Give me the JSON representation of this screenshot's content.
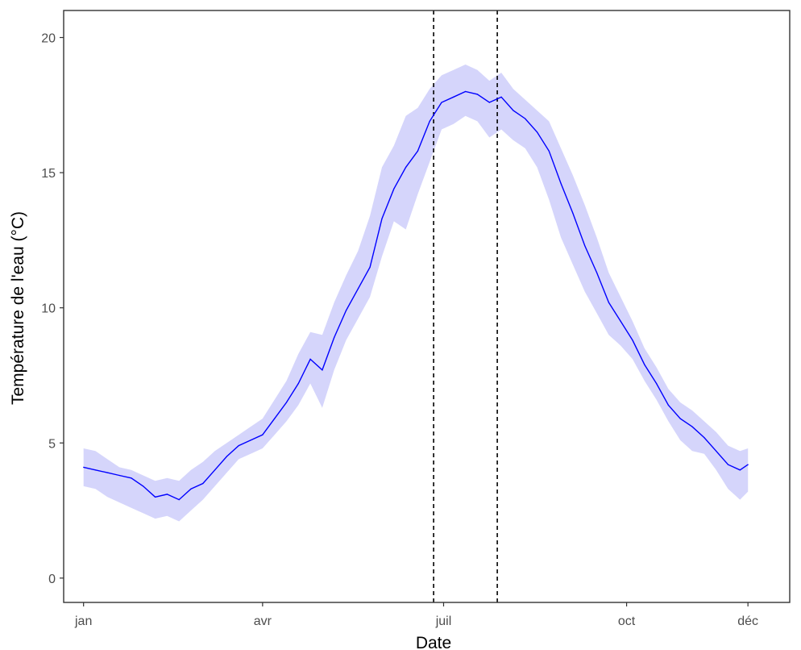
{
  "chart_data": {
    "type": "line",
    "title": "",
    "xlabel": "Date",
    "ylabel": "Température de l'eau (°C)",
    "x_ticks": [
      "jan",
      "avr",
      "juil",
      "oct",
      "déc"
    ],
    "x_tick_positions": [
      "2019-01-01",
      "2019-04-01",
      "2019-07-01",
      "2019-10-01",
      "2019-12-01"
    ],
    "xlim": [
      "2018-12-22",
      "2019-12-22"
    ],
    "y_ticks": [
      "0",
      "5",
      "10",
      "15",
      "20"
    ],
    "ylim": [
      -0.9,
      21
    ],
    "grid": false,
    "vertical_lines": [
      {
        "x": "2019-06-26",
        "style": "dashed",
        "color": "#000000"
      },
      {
        "x": "2019-07-28",
        "style": "dashed",
        "color": "#000000"
      }
    ],
    "series": [
      {
        "style": "line-with-ribbon",
        "color": "#0000ff",
        "ribbon_color": "#d5d5fb",
        "x": [
          "2019-01-01",
          "2019-01-07",
          "2019-01-13",
          "2019-01-19",
          "2019-01-25",
          "2019-01-31",
          "2019-02-06",
          "2019-02-12",
          "2019-02-18",
          "2019-02-24",
          "2019-03-02",
          "2019-03-08",
          "2019-03-14",
          "2019-03-20",
          "2019-03-26",
          "2019-04-01",
          "2019-04-07",
          "2019-04-13",
          "2019-04-19",
          "2019-04-25",
          "2019-05-01",
          "2019-05-07",
          "2019-05-13",
          "2019-05-19",
          "2019-05-25",
          "2019-05-31",
          "2019-06-06",
          "2019-06-12",
          "2019-06-18",
          "2019-06-24",
          "2019-06-30",
          "2019-07-06",
          "2019-07-12",
          "2019-07-18",
          "2019-07-24",
          "2019-07-30",
          "2019-08-05",
          "2019-08-11",
          "2019-08-17",
          "2019-08-23",
          "2019-08-29",
          "2019-09-04",
          "2019-09-10",
          "2019-09-16",
          "2019-09-22",
          "2019-09-28",
          "2019-10-04",
          "2019-10-10",
          "2019-10-16",
          "2019-10-22",
          "2019-10-28",
          "2019-11-03",
          "2019-11-09",
          "2019-11-15",
          "2019-11-21",
          "2019-11-27",
          "2019-12-01"
        ],
        "y": [
          4.1,
          4.0,
          3.9,
          3.8,
          3.7,
          3.4,
          3.0,
          3.1,
          2.9,
          3.3,
          3.5,
          4.0,
          4.5,
          4.9,
          5.1,
          5.3,
          5.9,
          6.5,
          7.2,
          8.1,
          7.7,
          8.9,
          9.9,
          10.7,
          11.5,
          13.3,
          14.4,
          15.2,
          15.8,
          16.9,
          17.6,
          17.8,
          18.0,
          17.9,
          17.6,
          17.8,
          17.3,
          17.0,
          16.5,
          15.8,
          14.6,
          13.5,
          12.3,
          11.3,
          10.2,
          9.5,
          8.8,
          7.9,
          7.2,
          6.4,
          5.9,
          5.6,
          5.2,
          4.7,
          4.2,
          4.0,
          4.2
        ],
        "y_lower": [
          3.4,
          3.3,
          3.0,
          2.8,
          2.6,
          2.4,
          2.2,
          2.3,
          2.1,
          2.5,
          2.9,
          3.4,
          3.9,
          4.4,
          4.6,
          4.8,
          5.3,
          5.8,
          6.4,
          7.2,
          6.3,
          7.7,
          8.8,
          9.6,
          10.4,
          11.9,
          13.2,
          12.9,
          14.2,
          15.4,
          16.6,
          16.8,
          17.1,
          16.9,
          16.3,
          16.6,
          16.2,
          15.9,
          15.2,
          14.0,
          12.6,
          11.6,
          10.6,
          9.8,
          9.0,
          8.6,
          8.1,
          7.3,
          6.6,
          5.8,
          5.1,
          4.7,
          4.6,
          4.0,
          3.3,
          2.9,
          3.2
        ],
        "y_upper": [
          4.8,
          4.7,
          4.4,
          4.1,
          4.0,
          3.8,
          3.6,
          3.7,
          3.6,
          4.0,
          4.3,
          4.7,
          5.0,
          5.3,
          5.6,
          5.9,
          6.6,
          7.3,
          8.3,
          9.1,
          9.0,
          10.2,
          11.2,
          12.1,
          13.4,
          15.2,
          16.0,
          17.1,
          17.4,
          18.1,
          18.6,
          18.8,
          19.0,
          18.8,
          18.4,
          18.7,
          18.1,
          17.7,
          17.3,
          16.9,
          15.9,
          14.9,
          13.8,
          12.6,
          11.3,
          10.4,
          9.5,
          8.5,
          7.8,
          7.0,
          6.5,
          6.2,
          5.8,
          5.4,
          4.9,
          4.7,
          4.8
        ]
      }
    ]
  }
}
